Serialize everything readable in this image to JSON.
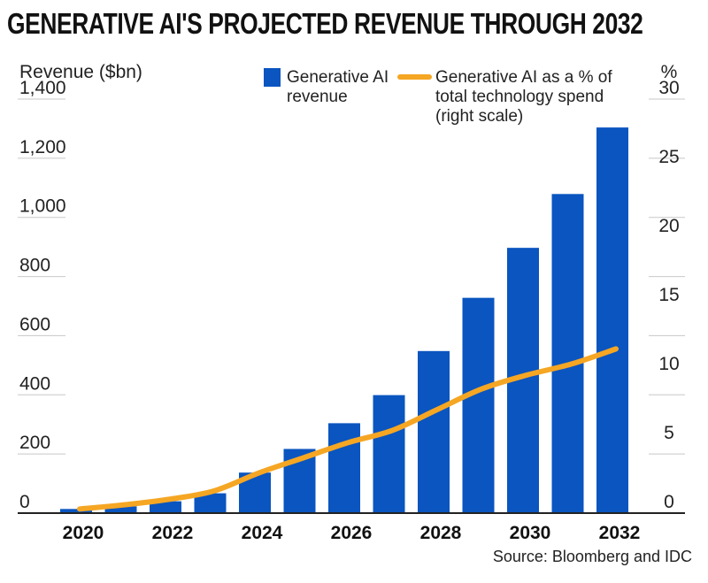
{
  "title": "GENERATIVE AI'S PROJECTED REVENUE THROUGH 2032",
  "source": "Source: Bloomberg and IDC",
  "colors": {
    "bar": "#0a55c0",
    "line": "#f5a623",
    "grid": "#c8c8c8",
    "axis": "#222222"
  },
  "chart_data": {
    "type": "bar",
    "categories": [
      "2020",
      "2021",
      "2022",
      "2023",
      "2024",
      "2025",
      "2026",
      "2027",
      "2028",
      "2029",
      "2030",
      "2031",
      "2032"
    ],
    "x_tick_labels": [
      "2020",
      "2022",
      "2024",
      "2026",
      "2028",
      "2030",
      "2032"
    ],
    "series": [
      {
        "name": "Generative AI revenue",
        "type": "bar",
        "axis": "left",
        "values": [
          14,
          23,
          40,
          67,
          137,
          217,
          304,
          399,
          548,
          728,
          897,
          1079,
          1304
        ]
      },
      {
        "name": "Generative AI as a % of total technology spend (right scale)",
        "type": "line",
        "axis": "right",
        "values": [
          0.3,
          0.6,
          1.0,
          1.6,
          2.9,
          4.0,
          5.1,
          6.0,
          7.5,
          9.0,
          10.0,
          10.8,
          11.9
        ]
      }
    ],
    "ylabel_left": "Revenue ($bn)",
    "ylabel_right": "%",
    "ylim_left": [
      0,
      1400
    ],
    "yticks_left": [
      "0",
      "200",
      "400",
      "600",
      "800",
      "1,000",
      "1,200",
      "1,400"
    ],
    "ylim_right": [
      0,
      30
    ],
    "yticks_right": [
      "0",
      "5",
      "10",
      "15",
      "20",
      "25",
      "30"
    ],
    "grid": true,
    "legend_position": "top"
  }
}
